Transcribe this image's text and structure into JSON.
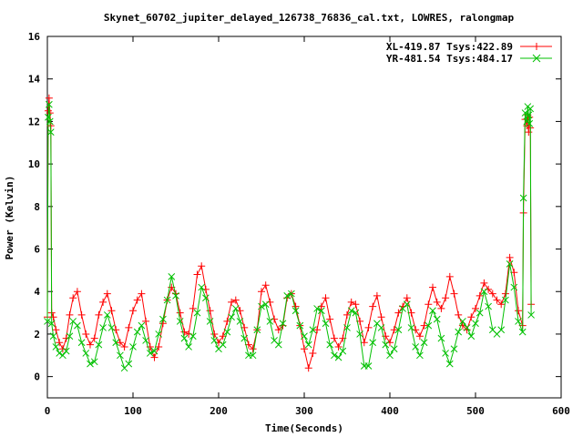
{
  "chart_data": {
    "type": "line",
    "title": "Skynet_60702_jupiter_delayed_126738_76836_cal.txt, LOWRES, ralongmap",
    "xlabel": "Time(Seconds)",
    "ylabel": "Power (Kelvin)",
    "xlim": [
      0,
      600
    ],
    "ylim": [
      -1,
      16
    ],
    "x_ticks": [
      0,
      100,
      200,
      300,
      400,
      500,
      600
    ],
    "y_ticks": [
      0,
      2,
      4,
      6,
      8,
      10,
      12,
      14,
      16
    ],
    "grid": false,
    "legend_position": "top-right",
    "series": [
      {
        "name": "XL-419.87 Tsys:422.89",
        "color": "#ff0000",
        "marker": "plus",
        "x": [
          0,
          1,
          2,
          3,
          4,
          5,
          7,
          10,
          14,
          18,
          22,
          26,
          30,
          35,
          40,
          45,
          50,
          55,
          60,
          65,
          70,
          75,
          80,
          85,
          90,
          95,
          100,
          105,
          110,
          115,
          120,
          125,
          130,
          135,
          140,
          145,
          150,
          155,
          160,
          165,
          170,
          175,
          180,
          185,
          190,
          195,
          200,
          205,
          210,
          215,
          220,
          225,
          230,
          235,
          240,
          245,
          250,
          255,
          260,
          265,
          270,
          275,
          280,
          285,
          290,
          295,
          300,
          305,
          310,
          315,
          320,
          325,
          330,
          335,
          340,
          345,
          350,
          355,
          360,
          365,
          370,
          375,
          380,
          385,
          390,
          395,
          400,
          405,
          410,
          415,
          420,
          425,
          430,
          435,
          440,
          445,
          450,
          455,
          460,
          465,
          470,
          475,
          480,
          485,
          490,
          495,
          500,
          505,
          510,
          515,
          520,
          525,
          530,
          535,
          540,
          545,
          550,
          555,
          556,
          558,
          560,
          561,
          562,
          563,
          564,
          565
        ],
        "y": [
          2.8,
          12.5,
          13.1,
          12.4,
          11.8,
          3.0,
          2.8,
          2.2,
          1.6,
          1.3,
          1.8,
          2.9,
          3.7,
          4.0,
          2.9,
          2.0,
          1.5,
          1.8,
          2.9,
          3.5,
          3.9,
          3.1,
          2.2,
          1.6,
          1.4,
          2.3,
          3.1,
          3.6,
          3.9,
          2.6,
          1.4,
          0.9,
          1.4,
          2.5,
          3.6,
          4.2,
          3.9,
          3.0,
          2.1,
          2.0,
          3.2,
          4.8,
          5.2,
          4.1,
          3.1,
          2.0,
          1.6,
          1.9,
          2.6,
          3.5,
          3.6,
          3.1,
          2.3,
          1.5,
          1.3,
          2.2,
          4.0,
          4.3,
          3.5,
          2.7,
          2.2,
          2.4,
          3.7,
          3.9,
          3.3,
          2.4,
          1.3,
          0.4,
          1.1,
          2.2,
          3.3,
          3.7,
          2.7,
          1.8,
          1.4,
          1.8,
          2.9,
          3.5,
          3.4,
          2.6,
          1.6,
          2.3,
          3.3,
          3.8,
          2.8,
          1.9,
          1.6,
          2.2,
          3.0,
          3.3,
          3.7,
          3.0,
          2.2,
          1.9,
          2.4,
          3.4,
          4.2,
          3.5,
          3.2,
          3.7,
          4.7,
          3.9,
          2.9,
          2.4,
          2.2,
          2.8,
          3.2,
          3.8,
          4.4,
          4.1,
          3.9,
          3.6,
          3.4,
          3.9,
          5.6,
          4.9,
          3.1,
          2.4,
          7.7,
          12.1,
          11.8,
          12.3,
          11.5,
          12.2,
          11.7,
          3.4
        ]
      },
      {
        "name": "YR-481.54 Tsys:484.17",
        "color": "#00c000",
        "marker": "cross",
        "x": [
          0,
          1,
          2,
          3,
          4,
          5,
          7,
          10,
          14,
          18,
          22,
          26,
          30,
          35,
          40,
          45,
          50,
          55,
          60,
          65,
          70,
          75,
          80,
          85,
          90,
          95,
          100,
          105,
          110,
          115,
          120,
          125,
          130,
          135,
          140,
          145,
          150,
          155,
          160,
          165,
          170,
          175,
          180,
          185,
          190,
          195,
          200,
          205,
          210,
          215,
          220,
          225,
          230,
          235,
          240,
          245,
          250,
          255,
          260,
          265,
          270,
          275,
          280,
          285,
          290,
          295,
          300,
          305,
          310,
          315,
          320,
          325,
          330,
          335,
          340,
          345,
          350,
          355,
          360,
          365,
          370,
          375,
          380,
          385,
          390,
          395,
          400,
          405,
          410,
          415,
          420,
          425,
          430,
          435,
          440,
          445,
          450,
          455,
          460,
          465,
          470,
          475,
          480,
          485,
          490,
          495,
          500,
          505,
          510,
          515,
          520,
          525,
          530,
          535,
          540,
          545,
          550,
          555,
          556,
          558,
          560,
          561,
          562,
          563,
          564,
          565
        ],
        "y": [
          2.6,
          12.2,
          12.8,
          12.0,
          11.5,
          2.5,
          1.9,
          1.4,
          1.1,
          1.0,
          1.2,
          1.9,
          2.6,
          2.4,
          1.6,
          1.1,
          0.6,
          0.7,
          1.5,
          2.3,
          2.9,
          2.3,
          1.6,
          1.0,
          0.4,
          0.6,
          1.4,
          2.1,
          2.4,
          1.7,
          1.1,
          1.2,
          2.0,
          2.7,
          3.6,
          4.7,
          3.8,
          2.6,
          1.8,
          1.4,
          1.9,
          3.0,
          4.2,
          3.7,
          2.6,
          1.7,
          1.3,
          1.5,
          2.1,
          2.8,
          3.2,
          2.6,
          1.8,
          1.0,
          1.0,
          2.2,
          3.3,
          3.4,
          2.6,
          1.7,
          1.5,
          2.5,
          3.8,
          3.9,
          3.1,
          2.4,
          1.9,
          1.5,
          2.2,
          3.2,
          3.1,
          2.5,
          1.5,
          1.0,
          0.9,
          1.2,
          2.3,
          3.1,
          3.0,
          2.0,
          0.5,
          0.5,
          1.6,
          2.5,
          2.3,
          1.5,
          1.0,
          1.3,
          2.2,
          3.2,
          3.4,
          2.3,
          1.4,
          1.0,
          1.6,
          2.4,
          3.1,
          2.7,
          1.8,
          1.1,
          0.6,
          1.3,
          2.1,
          2.6,
          2.3,
          1.9,
          2.5,
          3.0,
          4.0,
          3.3,
          2.2,
          2.0,
          2.2,
          3.6,
          5.3,
          4.2,
          2.6,
          2.1,
          8.4,
          12.4,
          12.0,
          12.7,
          12.3,
          11.9,
          12.6,
          2.9
        ]
      }
    ]
  }
}
